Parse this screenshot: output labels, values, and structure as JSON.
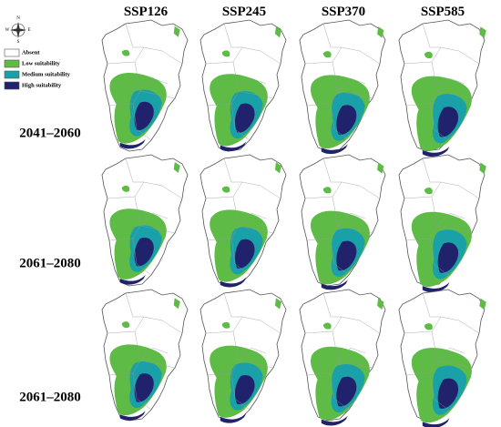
{
  "compass": {
    "n": "N",
    "s": "S",
    "e": "E",
    "w": "W"
  },
  "legend": {
    "items": [
      "Absent",
      "Low suitability",
      "Medium suitability",
      "High suitability"
    ]
  },
  "columns": [
    "SSP126",
    "SSP245",
    "SSP370",
    "SSP585"
  ],
  "rows": [
    "2041–2060",
    "2061–2080",
    "2061–2080"
  ]
}
